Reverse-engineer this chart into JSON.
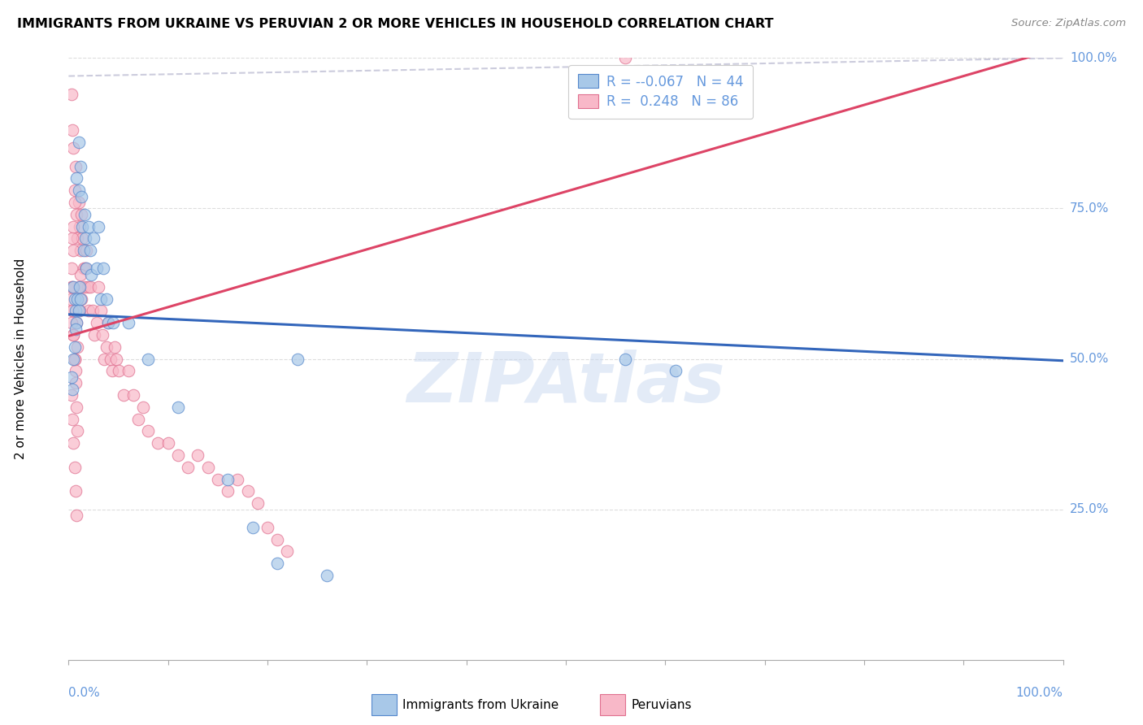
{
  "title": "IMMIGRANTS FROM UKRAINE VS PERUVIAN 2 OR MORE VEHICLES IN HOUSEHOLD CORRELATION CHART",
  "source": "Source: ZipAtlas.com",
  "ylabel": "2 or more Vehicles in Household",
  "ytick_values": [
    0.25,
    0.5,
    0.75,
    1.0
  ],
  "ytick_labels": [
    "25.0%",
    "50.0%",
    "75.0%",
    "100.0%"
  ],
  "legend1_R": "-0.067",
  "legend1_N": "44",
  "legend2_R": "0.248",
  "legend2_N": "86",
  "legend_label1": "Immigrants from Ukraine",
  "legend_label2": "Peruvians",
  "blue_fill": "#a8c8e8",
  "blue_edge": "#5588cc",
  "pink_fill": "#f8b8c8",
  "pink_edge": "#e07090",
  "blue_line": "#3366bb",
  "pink_line": "#dd4466",
  "diag_color": "#ccccdd",
  "tick_color": "#6699dd",
  "grid_color": "#dddddd",
  "uk_x": [
    0.008,
    0.01,
    0.01,
    0.012,
    0.013,
    0.014,
    0.015,
    0.016,
    0.017,
    0.018,
    0.02,
    0.022,
    0.023,
    0.025,
    0.028,
    0.03,
    0.032,
    0.035,
    0.038,
    0.04,
    0.005,
    0.006,
    0.007,
    0.008,
    0.009,
    0.01,
    0.011,
    0.012,
    0.045,
    0.06,
    0.08,
    0.11,
    0.16,
    0.21,
    0.56,
    0.61,
    0.003,
    0.004,
    0.005,
    0.006,
    0.007,
    0.185,
    0.23,
    0.26
  ],
  "uk_y": [
    0.8,
    0.78,
    0.86,
    0.82,
    0.77,
    0.72,
    0.68,
    0.74,
    0.7,
    0.65,
    0.72,
    0.68,
    0.64,
    0.7,
    0.65,
    0.72,
    0.6,
    0.65,
    0.6,
    0.56,
    0.62,
    0.6,
    0.58,
    0.56,
    0.6,
    0.58,
    0.62,
    0.6,
    0.56,
    0.56,
    0.5,
    0.42,
    0.3,
    0.16,
    0.5,
    0.48,
    0.47,
    0.45,
    0.5,
    0.52,
    0.55,
    0.22,
    0.5,
    0.14
  ],
  "peru_x": [
    0.003,
    0.004,
    0.005,
    0.006,
    0.007,
    0.008,
    0.009,
    0.01,
    0.011,
    0.012,
    0.013,
    0.014,
    0.015,
    0.016,
    0.017,
    0.018,
    0.019,
    0.02,
    0.022,
    0.024,
    0.026,
    0.028,
    0.03,
    0.032,
    0.034,
    0.036,
    0.038,
    0.04,
    0.042,
    0.044,
    0.046,
    0.048,
    0.05,
    0.055,
    0.06,
    0.065,
    0.07,
    0.075,
    0.08,
    0.09,
    0.004,
    0.005,
    0.006,
    0.007,
    0.008,
    0.009,
    0.01,
    0.011,
    0.012,
    0.013,
    0.1,
    0.11,
    0.12,
    0.13,
    0.14,
    0.15,
    0.16,
    0.17,
    0.18,
    0.19,
    0.2,
    0.21,
    0.22,
    0.003,
    0.004,
    0.005,
    0.006,
    0.007,
    0.008,
    0.009,
    0.002,
    0.003,
    0.003,
    0.004,
    0.004,
    0.005,
    0.005,
    0.006,
    0.56,
    0.003,
    0.004,
    0.005,
    0.006,
    0.007,
    0.008
  ],
  "peru_y": [
    0.94,
    0.88,
    0.85,
    0.78,
    0.82,
    0.74,
    0.7,
    0.76,
    0.72,
    0.68,
    0.74,
    0.7,
    0.65,
    0.62,
    0.65,
    0.68,
    0.62,
    0.58,
    0.62,
    0.58,
    0.54,
    0.56,
    0.62,
    0.58,
    0.54,
    0.5,
    0.52,
    0.56,
    0.5,
    0.48,
    0.52,
    0.5,
    0.48,
    0.44,
    0.48,
    0.44,
    0.4,
    0.42,
    0.38,
    0.36,
    0.58,
    0.54,
    0.5,
    0.48,
    0.56,
    0.52,
    0.62,
    0.58,
    0.64,
    0.6,
    0.36,
    0.34,
    0.32,
    0.34,
    0.32,
    0.3,
    0.28,
    0.3,
    0.28,
    0.26,
    0.22,
    0.2,
    0.18,
    0.62,
    0.58,
    0.54,
    0.5,
    0.46,
    0.42,
    0.38,
    0.6,
    0.56,
    0.65,
    0.62,
    0.7,
    0.68,
    0.72,
    0.76,
    1.0,
    0.44,
    0.4,
    0.36,
    0.32,
    0.28,
    0.24
  ],
  "uk_line": [
    0.0,
    1.0,
    0.574,
    0.497
  ],
  "peru_line": [
    0.0,
    1.0,
    0.538,
    1.018
  ],
  "diag_line": [
    0.0,
    1.0,
    0.97,
    1.0
  ],
  "xmin": 0.0,
  "xmax": 1.0,
  "ymin": 0.0,
  "ymax": 1.0
}
